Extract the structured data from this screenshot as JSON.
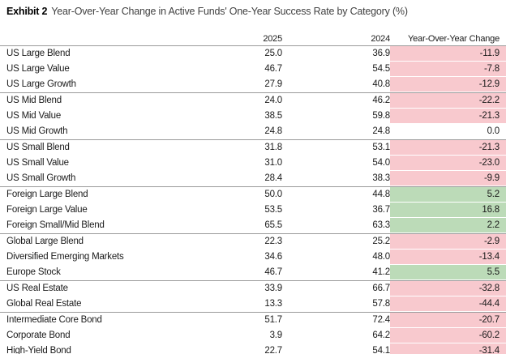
{
  "title": {
    "exhibit": "Exhibit 2",
    "text": "Year-Over-Year Change in Active Funds' One-Year Success Rate by Category (%)"
  },
  "columns": {
    "col_2025": "2025",
    "col_2024": "2024",
    "col_change": "Year-Over-Year Change"
  },
  "colors": {
    "negative_bg": "#f8c9ce",
    "positive_bg": "#bcdbb8",
    "divider": "#9b9b9b",
    "text": "#1a1a1a"
  },
  "table": {
    "rows": [
      {
        "group": 0,
        "name": "US Large Blend",
        "y2025": "25.0",
        "y2024": "36.9",
        "change": "-11.9"
      },
      {
        "group": 0,
        "name": "US Large Value",
        "y2025": "46.7",
        "y2024": "54.5",
        "change": "-7.8"
      },
      {
        "group": 0,
        "name": "US Large Growth",
        "y2025": "27.9",
        "y2024": "40.8",
        "change": "-12.9"
      },
      {
        "group": 1,
        "name": "US Mid Blend",
        "y2025": "24.0",
        "y2024": "46.2",
        "change": "-22.2"
      },
      {
        "group": 1,
        "name": "US Mid Value",
        "y2025": "38.5",
        "y2024": "59.8",
        "change": "-21.3"
      },
      {
        "group": 1,
        "name": "US Mid Growth",
        "y2025": "24.8",
        "y2024": "24.8",
        "change": "0.0"
      },
      {
        "group": 2,
        "name": "US Small Blend",
        "y2025": "31.8",
        "y2024": "53.1",
        "change": "-21.3"
      },
      {
        "group": 2,
        "name": "US Small Value",
        "y2025": "31.0",
        "y2024": "54.0",
        "change": "-23.0"
      },
      {
        "group": 2,
        "name": "US Small Growth",
        "y2025": "28.4",
        "y2024": "38.3",
        "change": "-9.9"
      },
      {
        "group": 3,
        "name": "Foreign Large Blend",
        "y2025": "50.0",
        "y2024": "44.8",
        "change": "5.2"
      },
      {
        "group": 3,
        "name": "Foreign Large Value",
        "y2025": "53.5",
        "y2024": "36.7",
        "change": "16.8"
      },
      {
        "group": 3,
        "name": "Foreign Small/Mid Blend",
        "y2025": "65.5",
        "y2024": "63.3",
        "change": "2.2"
      },
      {
        "group": 4,
        "name": "Global Large Blend",
        "y2025": "22.3",
        "y2024": "25.2",
        "change": "-2.9"
      },
      {
        "group": 4,
        "name": "Diversified Emerging Markets",
        "y2025": "34.6",
        "y2024": "48.0",
        "change": "-13.4"
      },
      {
        "group": 4,
        "name": "Europe Stock",
        "y2025": "46.7",
        "y2024": "41.2",
        "change": "5.5"
      },
      {
        "group": 5,
        "name": "US Real Estate",
        "y2025": "33.9",
        "y2024": "66.7",
        "change": "-32.8"
      },
      {
        "group": 5,
        "name": "Global Real Estate",
        "y2025": "13.3",
        "y2024": "57.8",
        "change": "-44.4"
      },
      {
        "group": 6,
        "name": "Intermediate Core Bond",
        "y2025": "51.7",
        "y2024": "72.4",
        "change": "-20.7"
      },
      {
        "group": 6,
        "name": "Corporate Bond",
        "y2025": "3.9",
        "y2024": "64.2",
        "change": "-60.2"
      },
      {
        "group": 6,
        "name": "High-Yield Bond",
        "y2025": "22.7",
        "y2024": "54.1",
        "change": "-31.4"
      }
    ]
  },
  "chart_data": {
    "type": "table",
    "title": "Exhibit 2  Year-Over-Year Change in Active Funds' One-Year Success Rate by Category (%)",
    "columns": [
      "Category",
      "2025",
      "2024",
      "Year-Over-Year Change"
    ],
    "categories": [
      "US Large Blend",
      "US Large Value",
      "US Large Growth",
      "US Mid Blend",
      "US Mid Value",
      "US Mid Growth",
      "US Small Blend",
      "US Small Value",
      "US Small Growth",
      "Foreign Large Blend",
      "Foreign Large Value",
      "Foreign Small/Mid Blend",
      "Global Large Blend",
      "Diversified Emerging Markets",
      "Europe Stock",
      "US Real Estate",
      "Global Real Estate",
      "Intermediate Core Bond",
      "Corporate Bond",
      "High-Yield Bond"
    ],
    "series": [
      {
        "name": "2025",
        "values": [
          25.0,
          46.7,
          27.9,
          24.0,
          38.5,
          24.8,
          31.8,
          31.0,
          28.4,
          50.0,
          53.5,
          65.5,
          22.3,
          34.6,
          46.7,
          33.9,
          13.3,
          51.7,
          3.9,
          22.7
        ]
      },
      {
        "name": "2024",
        "values": [
          36.9,
          54.5,
          40.8,
          46.2,
          59.8,
          24.8,
          53.1,
          54.0,
          38.3,
          44.8,
          36.7,
          63.3,
          25.2,
          48.0,
          41.2,
          66.7,
          57.8,
          72.4,
          64.2,
          54.1
        ]
      },
      {
        "name": "Year-Over-Year Change",
        "values": [
          -11.9,
          -7.8,
          -12.9,
          -22.2,
          -21.3,
          0.0,
          -21.3,
          -23.0,
          -9.9,
          5.2,
          16.8,
          2.2,
          -2.9,
          -13.4,
          5.5,
          -32.8,
          -44.4,
          -20.7,
          -60.2,
          -31.4
        ]
      }
    ],
    "layout_hints": "Change column cells shaded pink when negative, green when positive, unshaded when zero; thin gray rules separate category groups"
  }
}
